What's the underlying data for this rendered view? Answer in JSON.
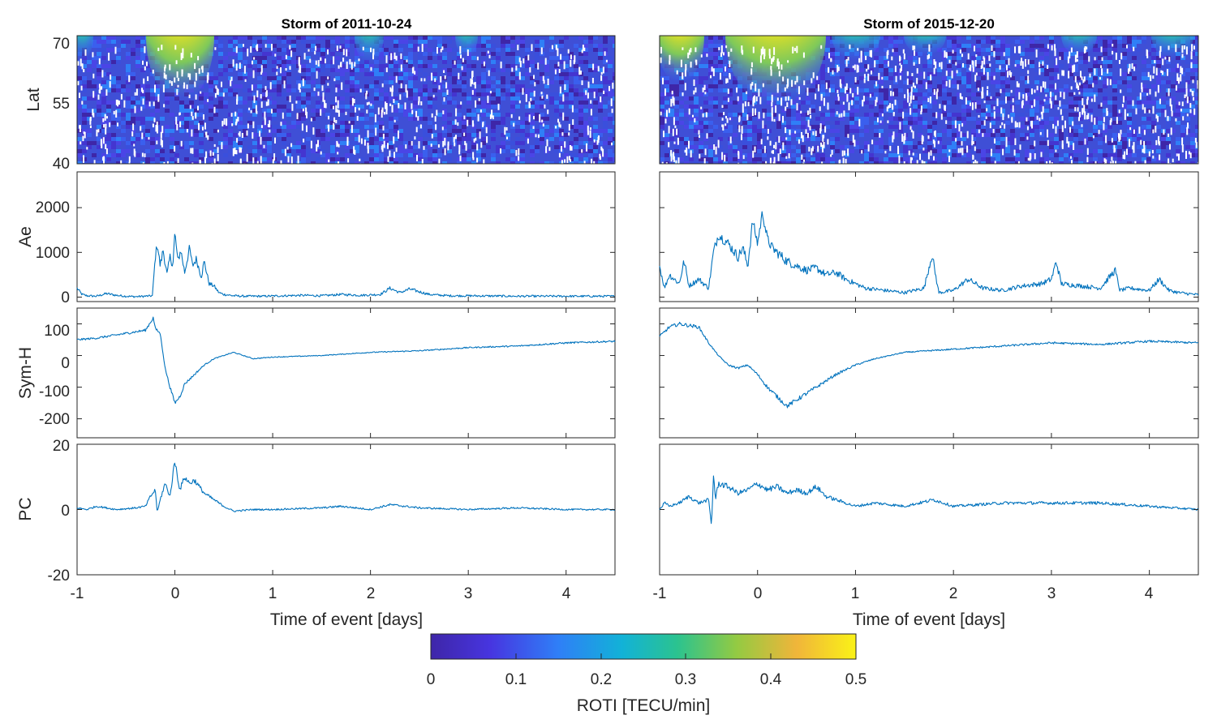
{
  "colors": {
    "series": "#0072bd",
    "axis": "#262626"
  },
  "chart_data": [
    {
      "type": "heatmap",
      "panel": "Storm of 2011-10-24 / Lat",
      "title": "Storm of 2011-10-24",
      "ylabel": "Lat",
      "ylim": [
        40,
        72
      ],
      "yticks": [
        40,
        55,
        70
      ],
      "xlim": [
        -1,
        4.5
      ],
      "colorbar_variable": "ROTI [TECU/min]",
      "hotspots": [
        {
          "t": -0.1,
          "lat_min": 56,
          "intensity": 0.5
        },
        {
          "t": -0.95,
          "lat_min": 66,
          "intensity": 0.3
        },
        {
          "t": 2.0,
          "lat_min": 66,
          "intensity": 0.25
        },
        {
          "t": 3.0,
          "lat_min": 67,
          "intensity": 0.2
        }
      ]
    },
    {
      "type": "heatmap",
      "panel": "Storm of 2015-12-20 / Lat",
      "title": "Storm of 2015-12-20",
      "ylabel": "",
      "ylim": [
        40,
        72
      ],
      "yticks": [
        40,
        55,
        70
      ],
      "xlim": [
        -1,
        4.5
      ],
      "colorbar_variable": "ROTI [TECU/min]",
      "hotspots": [
        {
          "t": -0.15,
          "lat_min": 57,
          "intensity": 0.5
        },
        {
          "t": -0.75,
          "lat_min": 63,
          "intensity": 0.4
        },
        {
          "t": 0.9,
          "lat_min": 67,
          "intensity": 0.25
        },
        {
          "t": 1.6,
          "lat_min": 68,
          "intensity": 0.2
        },
        {
          "t": 3.2,
          "lat_min": 68,
          "intensity": 0.2
        },
        {
          "t": 4.3,
          "lat_min": 68,
          "intensity": 0.25
        }
      ]
    },
    {
      "type": "line",
      "panel": "2011 Ae",
      "ylabel": "Ae",
      "xlim": [
        -1,
        4.5
      ],
      "ylim": [
        -100,
        2800
      ],
      "yticks": [
        0,
        1000,
        2000
      ],
      "x": [
        -1,
        -0.95,
        -0.9,
        -0.8,
        -0.7,
        -0.6,
        -0.5,
        -0.4,
        -0.3,
        -0.23,
        -0.2,
        -0.18,
        -0.15,
        -0.12,
        -0.08,
        -0.05,
        -0.02,
        0.0,
        0.03,
        0.06,
        0.1,
        0.15,
        0.18,
        0.22,
        0.27,
        0.3,
        0.35,
        0.4,
        0.45,
        0.5,
        0.6,
        0.7,
        0.9,
        1.1,
        1.3,
        1.5,
        1.7,
        1.9,
        2.1,
        2.2,
        2.3,
        2.4,
        2.5,
        2.6,
        2.8,
        3.0,
        3.5,
        4.0,
        4.5
      ],
      "y": [
        200,
        60,
        30,
        20,
        80,
        40,
        20,
        10,
        20,
        30,
        900,
        1200,
        700,
        1050,
        500,
        900,
        700,
        1450,
        800,
        1050,
        550,
        1100,
        700,
        850,
        450,
        800,
        300,
        250,
        100,
        60,
        30,
        20,
        20,
        30,
        40,
        30,
        60,
        40,
        60,
        200,
        100,
        180,
        120,
        60,
        30,
        30,
        20,
        20,
        20
      ]
    },
    {
      "type": "line",
      "panel": "2015 Ae",
      "ylabel": "",
      "xlim": [
        -1,
        4.5
      ],
      "ylim": [
        -100,
        2800
      ],
      "yticks": [
        0,
        1000,
        2000
      ],
      "x": [
        -1,
        -0.95,
        -0.9,
        -0.8,
        -0.75,
        -0.7,
        -0.6,
        -0.5,
        -0.45,
        -0.4,
        -0.3,
        -0.2,
        -0.15,
        -0.1,
        -0.05,
        0.0,
        0.05,
        0.1,
        0.15,
        0.2,
        0.3,
        0.4,
        0.5,
        0.6,
        0.7,
        0.8,
        0.9,
        1.0,
        1.1,
        1.3,
        1.5,
        1.7,
        1.78,
        1.85,
        2.0,
        2.15,
        2.3,
        2.5,
        2.7,
        2.9,
        3.0,
        3.05,
        3.1,
        3.3,
        3.5,
        3.65,
        3.7,
        3.8,
        4.0,
        4.1,
        4.2,
        4.3,
        4.5
      ],
      "y": [
        700,
        200,
        500,
        300,
        800,
        250,
        400,
        200,
        1000,
        1400,
        1200,
        900,
        1100,
        700,
        1700,
        1200,
        1900,
        1300,
        1100,
        1000,
        800,
        700,
        600,
        650,
        500,
        550,
        400,
        300,
        200,
        150,
        100,
        200,
        950,
        100,
        150,
        400,
        200,
        150,
        250,
        300,
        400,
        800,
        300,
        250,
        200,
        600,
        150,
        200,
        150,
        400,
        150,
        100,
        50
      ]
    },
    {
      "type": "line",
      "panel": "2011 Sym-H",
      "ylabel": "Sym-H",
      "xlim": [
        -1,
        4.5
      ],
      "ylim": [
        -260,
        150
      ],
      "yticks": [
        -200,
        -100,
        0,
        100
      ],
      "x": [
        -1,
        -0.8,
        -0.6,
        -0.4,
        -0.3,
        -0.22,
        -0.2,
        -0.15,
        -0.1,
        -0.05,
        0.0,
        0.05,
        0.1,
        0.2,
        0.3,
        0.4,
        0.6,
        0.8,
        1.0,
        1.5,
        2.0,
        2.5,
        3.0,
        3.5,
        4.0,
        4.5
      ],
      "y": [
        50,
        55,
        65,
        75,
        80,
        120,
        85,
        70,
        -40,
        -100,
        -150,
        -130,
        -90,
        -60,
        -30,
        -10,
        10,
        -10,
        -5,
        0,
        10,
        15,
        25,
        30,
        40,
        45
      ]
    },
    {
      "type": "line",
      "panel": "2015 Sym-H",
      "ylabel": "",
      "xlim": [
        -1,
        4.5
      ],
      "ylim": [
        -260,
        150
      ],
      "yticks": [
        -200,
        -100,
        0,
        100
      ],
      "x": [
        -1,
        -0.9,
        -0.8,
        -0.7,
        -0.6,
        -0.5,
        -0.4,
        -0.3,
        -0.2,
        -0.1,
        0.0,
        0.1,
        0.2,
        0.3,
        0.4,
        0.5,
        0.6,
        0.8,
        1.0,
        1.2,
        1.5,
        2.0,
        2.5,
        3.0,
        3.5,
        4.0,
        4.5
      ],
      "y": [
        60,
        90,
        100,
        95,
        90,
        40,
        0,
        -30,
        -40,
        -30,
        -60,
        -100,
        -130,
        -160,
        -140,
        -120,
        -100,
        -60,
        -30,
        -10,
        10,
        20,
        30,
        40,
        35,
        45,
        40
      ]
    },
    {
      "type": "line",
      "panel": "2011 PC",
      "ylabel": "PC",
      "xlim": [
        -1,
        4.5
      ],
      "ylim": [
        -20,
        20
      ],
      "yticks": [
        -20,
        0,
        20
      ],
      "x": [
        -1,
        -0.9,
        -0.8,
        -0.6,
        -0.4,
        -0.3,
        -0.25,
        -0.2,
        -0.18,
        -0.15,
        -0.1,
        -0.05,
        0.0,
        0.05,
        0.1,
        0.15,
        0.2,
        0.3,
        0.4,
        0.5,
        0.6,
        0.8,
        1.0,
        1.5,
        1.7,
        2.0,
        2.2,
        2.5,
        3.0,
        3.5,
        4.0,
        4.5
      ],
      "y": [
        0.5,
        0,
        1,
        0,
        0.5,
        1,
        4,
        6,
        -1,
        3,
        8,
        4,
        15,
        6,
        10,
        8,
        9,
        5,
        3,
        1,
        -0.5,
        0,
        0,
        0.5,
        1,
        0,
        1.5,
        0.5,
        0,
        0.5,
        0,
        0
      ]
    },
    {
      "type": "line",
      "panel": "2015 PC",
      "ylabel": "",
      "xlim": [
        -1,
        4.5
      ],
      "ylim": [
        -20,
        20
      ],
      "yticks": [
        -20,
        0,
        20
      ],
      "x": [
        -1,
        -0.95,
        -0.9,
        -0.8,
        -0.7,
        -0.6,
        -0.5,
        -0.47,
        -0.45,
        -0.43,
        -0.4,
        -0.3,
        -0.2,
        -0.1,
        0.0,
        0.1,
        0.2,
        0.3,
        0.4,
        0.5,
        0.6,
        0.7,
        0.8,
        1.0,
        1.2,
        1.5,
        1.8,
        2.0,
        2.5,
        3.0,
        3.5,
        4.0,
        4.5
      ],
      "y": [
        0,
        2,
        1,
        2,
        4,
        2,
        3,
        -5,
        11,
        3,
        8,
        7,
        5,
        6,
        8,
        6,
        7,
        5,
        6,
        5,
        7,
        4,
        3,
        1,
        2,
        1,
        3,
        1,
        2,
        2,
        2,
        1,
        0
      ]
    },
    {
      "type": "colorbar",
      "label": "ROTI [TECU/min]",
      "range": [
        0,
        0.5
      ],
      "ticks": [
        "0",
        "0.1",
        "0.2",
        "0.3",
        "0.4",
        "0.5"
      ],
      "colormap": [
        "#3e26a8",
        "#4735e0",
        "#2f7ff7",
        "#12b2d7",
        "#2bc38f",
        "#94ca42",
        "#f0b53a",
        "#faf217"
      ]
    }
  ],
  "titles": {
    "left": "Storm of 2011-10-24",
    "right": "Storm of 2015-12-20"
  },
  "ylabels": {
    "lat": "Lat",
    "ae": "Ae",
    "symh": "Sym-H",
    "pc": "PC"
  },
  "lat_ticks": [
    "70",
    "55",
    "40"
  ],
  "ae_ticks": [
    "2000",
    "1000",
    "0"
  ],
  "symh_ticks": [
    "100",
    "0",
    "-100",
    "-200"
  ],
  "pc_ticks": [
    "20",
    "0",
    "-20"
  ],
  "x_ticks": [
    "-1",
    "0",
    "1",
    "2",
    "3",
    "4"
  ],
  "xlabel": "Time of event [days]"
}
